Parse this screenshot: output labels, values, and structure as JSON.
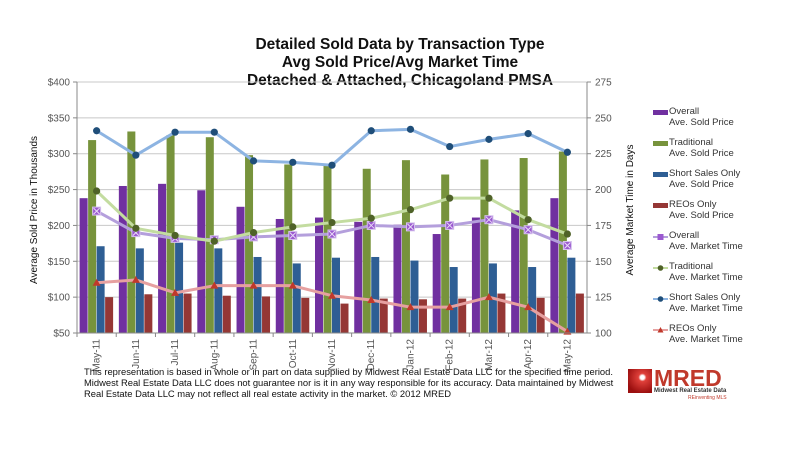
{
  "chart_data": {
    "type": "bar",
    "title": [
      "Detailed Sold Data by Transaction Type",
      "Avg Sold Price/Avg Market Time",
      "Detached & Attached, Chicagoland PMSA"
    ],
    "categories": [
      "May-11",
      "Jun-11",
      "Jul-11",
      "Aug-11",
      "Sep-11",
      "Oct-11",
      "Nov-11",
      "Dec-11",
      "Jan-12",
      "Feb-12",
      "Mar-12",
      "Apr-12",
      "May-12"
    ],
    "ylabel": "Average Sold Price in Thousands",
    "y2label": "Average Market Time in Days",
    "ylim": [
      50,
      400
    ],
    "y2lim": [
      100,
      275
    ],
    "yticks": [
      "$50",
      "$100",
      "$150",
      "$200",
      "$250",
      "$300",
      "$350",
      "$400"
    ],
    "y2ticks": [
      "100",
      "125",
      "150",
      "175",
      "200",
      "225",
      "250",
      "275"
    ],
    "grid": true,
    "legend_position": "right",
    "bar_series": [
      {
        "name": "Overall Ave. Sold Price",
        "legend": [
          "Overall",
          "Ave. Sold Price"
        ],
        "color": "#7030a0",
        "values": [
          238,
          255,
          258,
          249,
          226,
          209,
          211,
          205,
          201,
          188,
          211,
          221,
          238
        ]
      },
      {
        "name": "Traditional Ave. Sold Price",
        "legend": [
          "Traditional",
          "Ave. Sold Price"
        ],
        "color": "#77933c",
        "values": [
          319,
          331,
          326,
          323,
          298,
          285,
          283,
          279,
          291,
          271,
          292,
          294,
          303
        ]
      },
      {
        "name": "Short Sales Only Ave. Sold Price",
        "legend": [
          "Short Sales Only",
          "Ave. Sold Price"
        ],
        "color": "#2e5e94",
        "values": [
          171,
          168,
          176,
          168,
          156,
          147,
          155,
          156,
          151,
          142,
          147,
          142,
          155
        ]
      },
      {
        "name": "REOs Only Ave. Sold Price",
        "legend": [
          "REOs Only",
          "Ave. Sold Price"
        ],
        "color": "#953735",
        "values": [
          100,
          104,
          105,
          102,
          101,
          99,
          91,
          98,
          97,
          98,
          105,
          99,
          105
        ]
      }
    ],
    "line_series": [
      {
        "name": "Overall Ave. Market Time",
        "legend": [
          "Overall",
          "Ave. Market Time"
        ],
        "color": "#b49fdc",
        "marker_color": "#9b59d0",
        "marker": "square-x",
        "values": [
          185,
          170,
          166,
          165,
          167,
          168,
          169,
          175,
          174,
          175,
          179,
          172,
          161
        ]
      },
      {
        "name": "Traditional Ave. Market Time",
        "legend": [
          "Traditional",
          "Ave. Market Time"
        ],
        "color": "#c3dca0",
        "marker_color": "#4f6228",
        "marker": "circle",
        "values": [
          199,
          173,
          168,
          164,
          170,
          174,
          177,
          180,
          186,
          194,
          194,
          179,
          169
        ]
      },
      {
        "name": "Short Sales Only Ave. Market Time",
        "legend": [
          "Short Sales Only",
          "Ave. Market Time"
        ],
        "color": "#8db4e2",
        "marker_color": "#1f4e79",
        "marker": "circle",
        "values": [
          241,
          224,
          240,
          240,
          220,
          219,
          217,
          241,
          242,
          230,
          235,
          239,
          226
        ]
      },
      {
        "name": "REOs Only Ave. Market Time",
        "legend": [
          "REOs Only",
          "Ave. Market Time"
        ],
        "color": "#e6a0a0",
        "marker_color": "#c0392b",
        "marker": "triangle",
        "values": [
          135,
          137,
          128,
          133,
          133,
          133,
          126,
          123,
          118,
          118,
          125,
          118,
          101
        ]
      }
    ]
  },
  "disclaimer": "This representation is based in whole or in part on data supplied by Midwest Real Estate Data LLC for the specified time period.  Midwest Real Estate Data LLC does not guarantee nor is it in any way responsible for its accuracy.  Data maintained by Midwest Real Estate Data LLC may not reflect all real estate activity in the market.  © 2012 MRED",
  "logo": {
    "word": "MRED",
    "sub": "Midwest Real Estate Data",
    "tagline": "REinventing MLS"
  }
}
